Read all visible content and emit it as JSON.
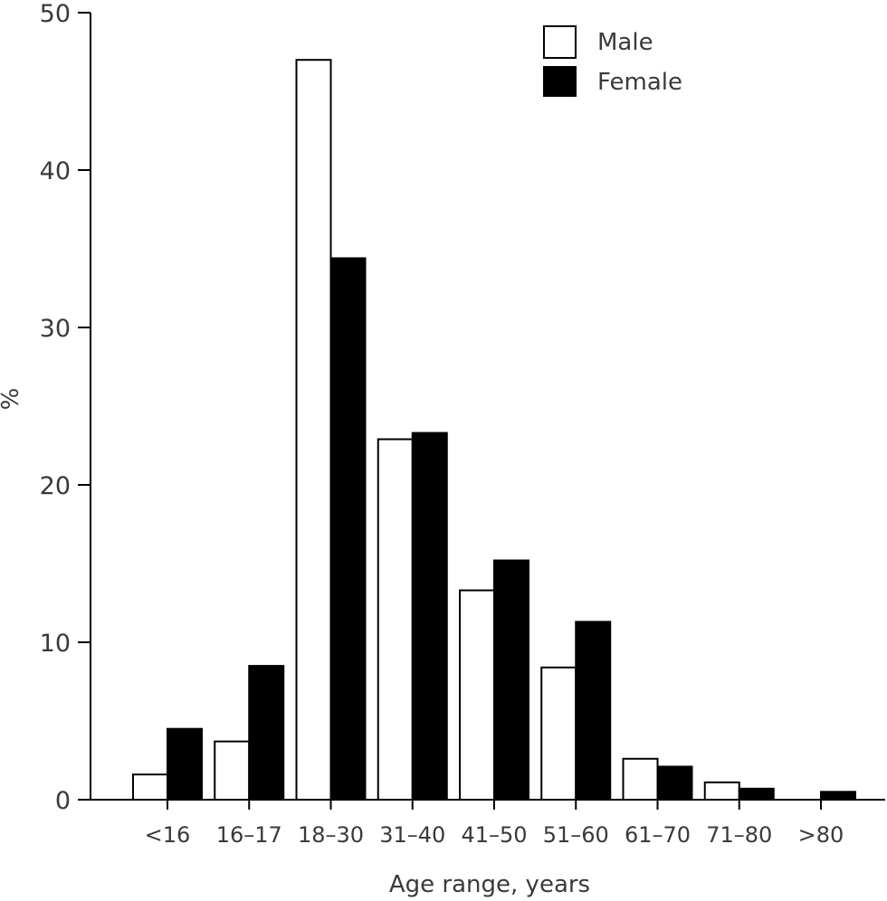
{
  "chart_data": {
    "type": "bar",
    "xlabel": "Age range, years",
    "ylabel": "%",
    "ylim": [
      0,
      50
    ],
    "yticks": [
      0,
      10,
      20,
      30,
      40,
      50
    ],
    "categories": [
      "<16",
      "16–17",
      "18–30",
      "31–40",
      "41–50",
      "51–60",
      "61–70",
      "71–80",
      ">80"
    ],
    "series": [
      {
        "name": "Male",
        "color": "#ffffff",
        "values": [
          1.6,
          3.7,
          47.0,
          22.9,
          13.3,
          8.4,
          2.6,
          1.1,
          0.0
        ]
      },
      {
        "name": "Female",
        "color": "#000000",
        "values": [
          4.5,
          8.5,
          34.4,
          23.3,
          15.2,
          11.3,
          2.1,
          0.7,
          0.5
        ]
      }
    ],
    "legend_position": "top-right",
    "grid": false
  }
}
